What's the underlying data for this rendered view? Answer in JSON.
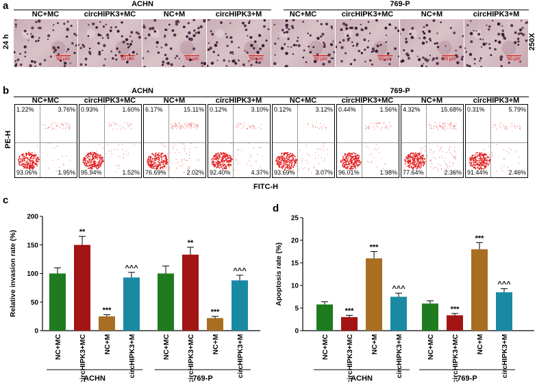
{
  "panels": {
    "a": "a",
    "b": "b",
    "c": "c",
    "d": "d"
  },
  "groups": {
    "left": "ACHN",
    "right": "769-P"
  },
  "columns": [
    "NC+MC",
    "circHIPK3+MC",
    "NC+M",
    "circHIPK3+M",
    "NC+MC",
    "circHIPK3+MC",
    "NC+M",
    "circHIPK3+M"
  ],
  "panel_a": {
    "time_label": "24 h",
    "mag_label": "250X",
    "scale_text": "50 μm"
  },
  "panel_b": {
    "y_label": "PE-H",
    "x_label": "FITC-H",
    "plots": [
      {
        "ul": "1.22%",
        "ur": "3.76%",
        "ll": "93.06%",
        "lr": "1.95%"
      },
      {
        "ul": "0.93%",
        "ur": "1.60%",
        "ll": "95.94%",
        "lr": "1.52%"
      },
      {
        "ul": "6.17%",
        "ur": "15.11%",
        "ll": "76.69%",
        "lr": "2.02%"
      },
      {
        "ul": "0.12%",
        "ur": "3.10%",
        "ll": "92.40%",
        "lr": "4.37%"
      },
      {
        "ul": "0.12%",
        "ur": "3.12%",
        "ll": "93.69%",
        "lr": "3.07%"
      },
      {
        "ul": "0.44%",
        "ur": "1.56%",
        "ll": "96.01%",
        "lr": "1.98%"
      },
      {
        "ul": "4.32%",
        "ur": "15.68%",
        "ll": "77.64%",
        "lr": "2.36%"
      },
      {
        "ul": "0.31%",
        "ur": "5.79%",
        "ll": "91.44%",
        "lr": "2.46%"
      }
    ]
  },
  "colors": {
    "green": "#1e7b1e",
    "red": "#a31414",
    "brown": "#a86e22",
    "teal": "#1a8aa3"
  },
  "chart_data": [
    {
      "type": "bar",
      "ylabel": "Relative invasion rate (%)",
      "ylim": [
        0,
        200
      ],
      "yticks": [
        "0",
        "50",
        "100",
        "150",
        "200"
      ],
      "categories": [
        "NC+MC",
        "circHIPK3+MC",
        "NC+M",
        "circHIPK3+M"
      ],
      "groups": [
        "ACHN",
        "769-P"
      ],
      "series": [
        {
          "group": "ACHN",
          "values": [
            100,
            150,
            25,
            93
          ],
          "errors": [
            10,
            15,
            3,
            9
          ],
          "sig": [
            "",
            "**",
            "***",
            "^^^"
          ]
        },
        {
          "group": "769-P",
          "values": [
            100,
            133,
            22,
            88
          ],
          "errors": [
            13,
            13,
            3,
            9
          ],
          "sig": [
            "",
            "**",
            "***",
            "^^^"
          ]
        }
      ]
    },
    {
      "type": "bar",
      "ylabel": "Apoptosis rate (%)",
      "ylim": [
        0,
        25
      ],
      "yticks": [
        "0",
        "5",
        "10",
        "15",
        "20",
        "25"
      ],
      "categories": [
        "NC+MC",
        "circHIPK3+MC",
        "NC+M",
        "circHIPK3+M"
      ],
      "groups": [
        "ACHN",
        "769-P"
      ],
      "series": [
        {
          "group": "ACHN",
          "values": [
            5.8,
            3.0,
            16.0,
            7.5
          ],
          "errors": [
            0.6,
            0.4,
            1.5,
            0.8
          ],
          "sig": [
            "",
            "***",
            "***",
            "^^^"
          ]
        },
        {
          "group": "769-P",
          "values": [
            6.0,
            3.4,
            18.0,
            8.5
          ],
          "errors": [
            0.6,
            0.4,
            1.5,
            0.8
          ],
          "sig": [
            "",
            "***",
            "***",
            "^^^"
          ]
        }
      ]
    }
  ]
}
